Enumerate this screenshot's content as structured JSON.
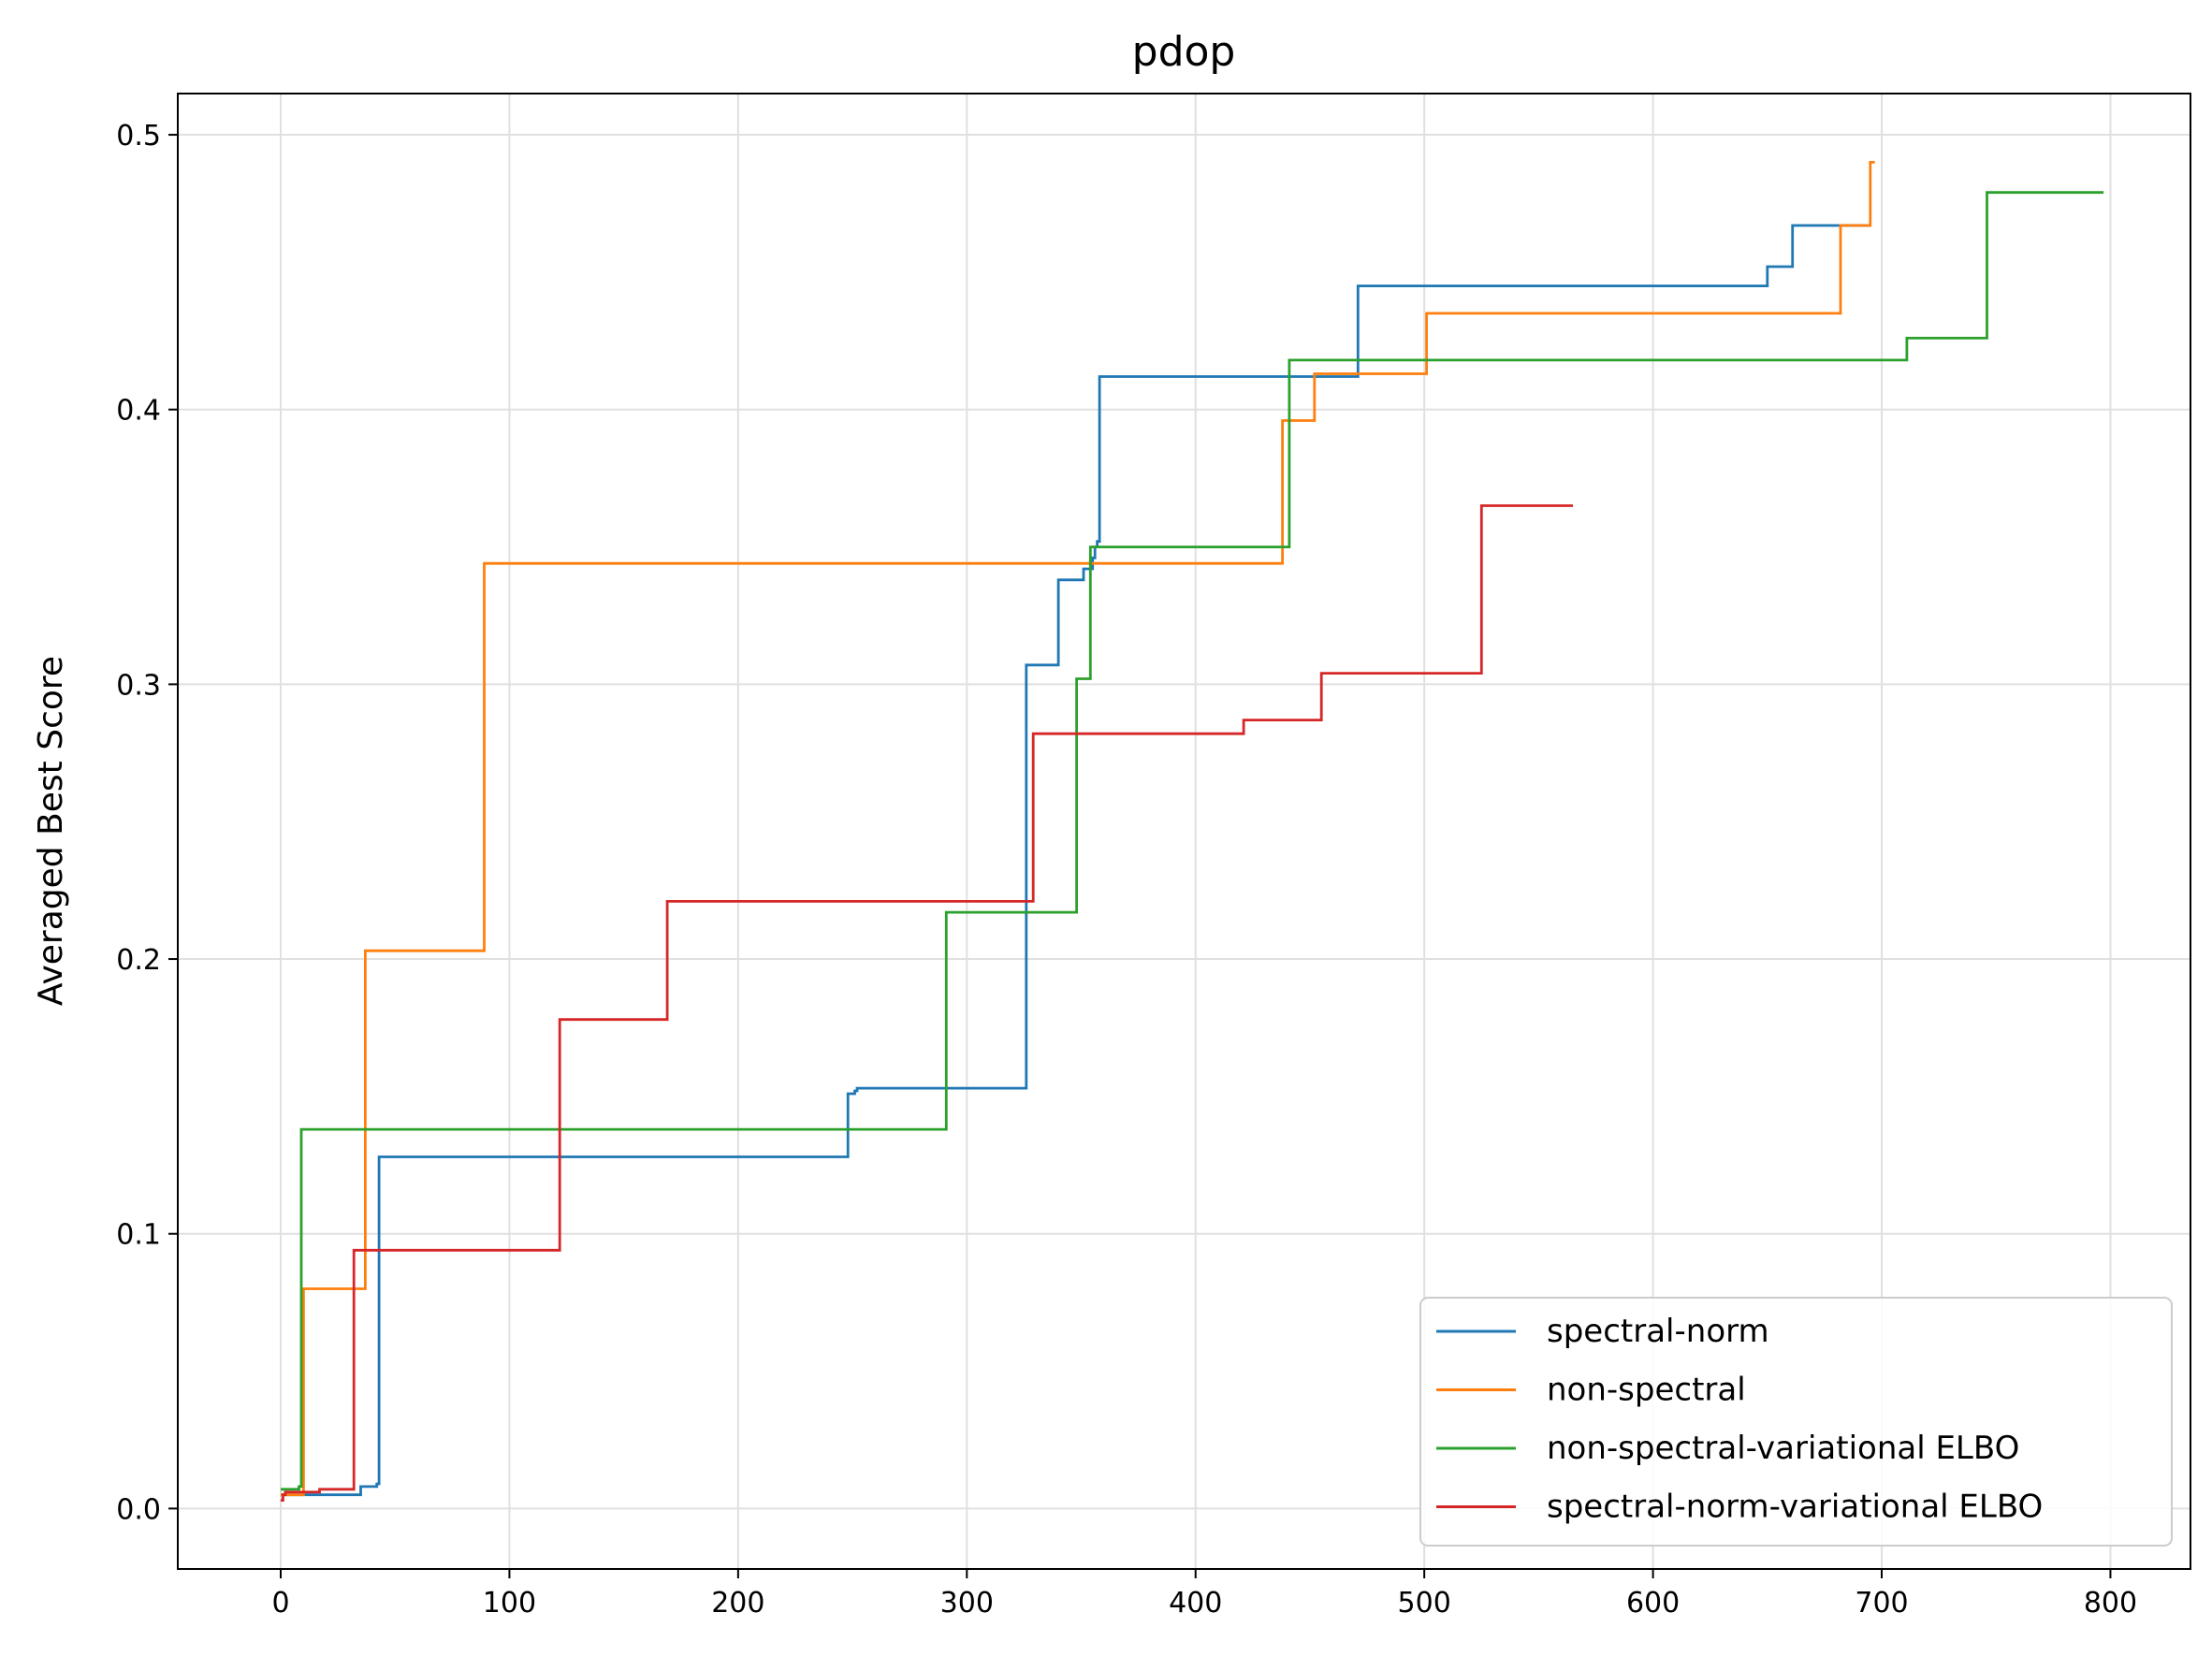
{
  "chart_data": {
    "type": "line",
    "step": "post",
    "title": "pdop",
    "xlabel": "",
    "ylabel": "Averaged Best Score",
    "xlim": [
      -45,
      835
    ],
    "ylim": [
      -0.022,
      0.515
    ],
    "xticks": [
      0,
      100,
      200,
      300,
      400,
      500,
      600,
      700,
      800
    ],
    "yticks": [
      0.0,
      0.1,
      0.2,
      0.3,
      0.4,
      0.5
    ],
    "xtick_labels": [
      "0",
      "100",
      "200",
      "300",
      "400",
      "500",
      "600",
      "700",
      "800"
    ],
    "ytick_labels": [
      "0.0",
      "0.1",
      "0.2",
      "0.3",
      "0.4",
      "0.5"
    ],
    "grid": true,
    "legend_position": "lower-right",
    "series": [
      {
        "name": "spectral-norm",
        "color": "#1f77b4",
        "x": [
          0,
          35,
          37,
          42,
          43,
          247,
          248,
          251,
          252,
          325,
          326,
          339,
          340,
          350,
          351,
          355,
          356,
          357,
          358,
          470,
          471,
          649,
          650,
          660,
          661,
          695
        ],
        "y": [
          0.005,
          0.008,
          0.008,
          0.009,
          0.128,
          0.128,
          0.151,
          0.152,
          0.153,
          0.153,
          0.307,
          0.307,
          0.338,
          0.338,
          0.342,
          0.346,
          0.35,
          0.352,
          0.412,
          0.412,
          0.445,
          0.445,
          0.452,
          0.452,
          0.467,
          0.467
        ]
      },
      {
        "name": "non-spectral",
        "color": "#ff7f0e",
        "x": [
          0,
          10,
          36,
          37,
          88,
          89,
          437,
          438,
          451,
          452,
          500,
          501,
          681,
          682,
          694,
          695,
          697
        ],
        "y": [
          0.005,
          0.08,
          0.08,
          0.203,
          0.203,
          0.344,
          0.344,
          0.396,
          0.396,
          0.413,
          0.413,
          0.435,
          0.435,
          0.467,
          0.467,
          0.49,
          0.49
        ]
      },
      {
        "name": "non-spectral-variational ELBO",
        "color": "#2ca02c",
        "x": [
          0,
          8,
          9,
          290,
          291,
          347,
          348,
          353,
          354,
          440,
          441,
          710,
          711,
          745,
          746,
          797
        ],
        "y": [
          0.007,
          0.008,
          0.138,
          0.138,
          0.217,
          0.217,
          0.302,
          0.302,
          0.35,
          0.35,
          0.418,
          0.418,
          0.426,
          0.426,
          0.479,
          0.479
        ]
      },
      {
        "name": "spectral-norm-variational ELBO",
        "color": "#d62728",
        "x": [
          0,
          1,
          2,
          16,
          17,
          31,
          32,
          121,
          122,
          168,
          169,
          328,
          329,
          420,
          421,
          454,
          455,
          524,
          525,
          565
        ],
        "y": [
          0.003,
          0.005,
          0.006,
          0.006,
          0.007,
          0.007,
          0.094,
          0.094,
          0.178,
          0.178,
          0.221,
          0.221,
          0.282,
          0.282,
          0.287,
          0.287,
          0.304,
          0.304,
          0.365,
          0.365
        ]
      }
    ]
  }
}
